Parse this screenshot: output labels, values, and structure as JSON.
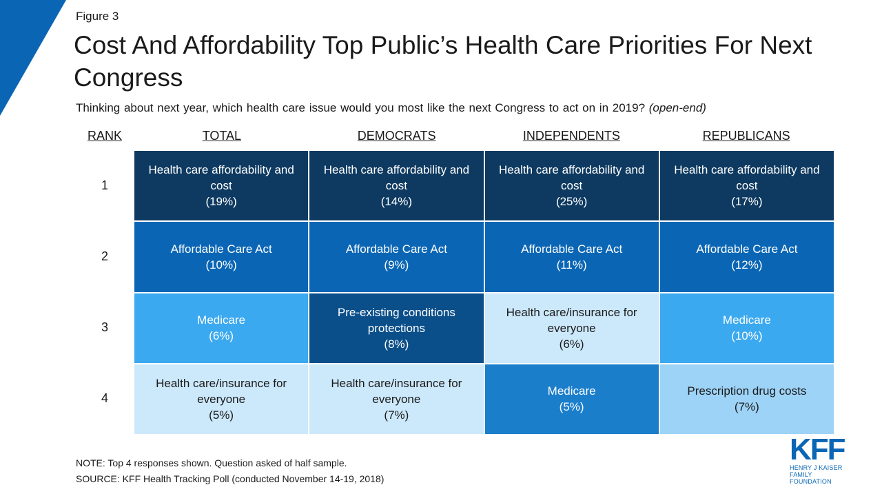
{
  "figure_label": "Figure 3",
  "title": "Cost And Affordability Top Public’s Health Care Priorities For Next Congress",
  "subtitle_main": "Thinking about next year, which health care issue would you most like the next Congress to act on in 2019?",
  "subtitle_note": "(open-end)",
  "colors": {
    "brand": "#0a66b5",
    "darkest": "#0e3a61",
    "dark": "#0b4f8a",
    "mid": "#1a7ecb",
    "light": "#3ba9ef",
    "lighter": "#9dd3f7",
    "lightest": "#cce8fb"
  },
  "chart_data": {
    "type": "table",
    "rank_header": "RANK",
    "columns": [
      "TOTAL",
      "DEMOCRATS",
      "INDEPENDENTS",
      "REPUBLICANS"
    ],
    "ranks": [
      "1",
      "2",
      "3",
      "4"
    ],
    "rows": [
      [
        {
          "issue": "Health care affordability and cost",
          "pct": "(19%)",
          "value": 19
        },
        {
          "issue": "Health care affordability and cost",
          "pct": "(14%)",
          "value": 14
        },
        {
          "issue": "Health care affordability and cost",
          "pct": "(25%)",
          "value": 25
        },
        {
          "issue": "Health care affordability and cost",
          "pct": "(17%)",
          "value": 17
        }
      ],
      [
        {
          "issue": "Affordable Care Act",
          "pct": "(10%)",
          "value": 10
        },
        {
          "issue": "Affordable Care Act",
          "pct": "(9%)",
          "value": 9
        },
        {
          "issue": "Affordable Care Act",
          "pct": "(11%)",
          "value": 11
        },
        {
          "issue": "Affordable Care Act",
          "pct": "(12%)",
          "value": 12
        }
      ],
      [
        {
          "issue": "Medicare",
          "pct": "(6%)",
          "value": 6
        },
        {
          "issue": "Pre-existing conditions protections",
          "pct": "(8%)",
          "value": 8
        },
        {
          "issue": "Health care/insurance for everyone",
          "pct": "(6%)",
          "value": 6
        },
        {
          "issue": "Medicare",
          "pct": "(10%)",
          "value": 10
        }
      ],
      [
        {
          "issue": "Health care/insurance for everyone",
          "pct": "(5%)",
          "value": 5
        },
        {
          "issue": "Health care/insurance for everyone",
          "pct": "(7%)",
          "value": 7
        },
        {
          "issue": "Medicare",
          "pct": "(5%)",
          "value": 5
        },
        {
          "issue": "Prescription drug costs",
          "pct": "(7%)",
          "value": 7
        }
      ]
    ]
  },
  "note": "NOTE: Top 4 responses shown. Question asked of half sample.",
  "source": "SOURCE: KFF Health Tracking Poll (conducted November 14-19, 2018)",
  "logo": {
    "mark": "KFF",
    "line1": "HENRY J KAISER",
    "line2": "FAMILY FOUNDATION"
  }
}
